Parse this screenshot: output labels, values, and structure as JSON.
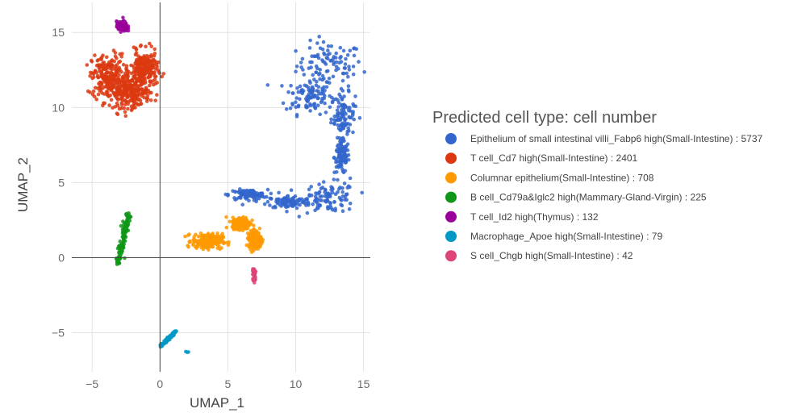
{
  "chart_data": {
    "type": "scatter",
    "title": "",
    "xlabel": "UMAP_1",
    "ylabel": "UMAP_2",
    "xlim": [
      -6.5,
      15.5
    ],
    "ylim": [
      -7.6,
      17.0
    ],
    "xticks": [
      -5,
      0,
      5,
      10,
      15
    ],
    "yticks": [
      -5,
      0,
      5,
      10,
      15
    ],
    "tick_labels_x": [
      "−5",
      "0",
      "5",
      "10",
      "15"
    ],
    "tick_labels_y": [
      "−5",
      "0",
      "5",
      "10",
      "15"
    ],
    "grid": true,
    "legend_placement": "right",
    "legend_title": "Predicted cell type: cell number",
    "series": [
      {
        "name": "Epithelium of small intestinal villi_Fabp6 high(Small-Intestine) : 5737",
        "color": "#3366cc",
        "count": 5737,
        "clusters": [
          {
            "cx": 12.5,
            "cy": 12.8,
            "sx": 2.2,
            "sy": 1.4
          },
          {
            "cx": 11.0,
            "cy": 10.8,
            "sx": 1.6,
            "sy": 1.1
          },
          {
            "cx": 13.5,
            "cy": 9.5,
            "sx": 0.8,
            "sy": 1.3
          },
          {
            "cx": 13.4,
            "cy": 6.7,
            "sx": 0.5,
            "sy": 1.0
          },
          {
            "cx": 12.5,
            "cy": 4.0,
            "sx": 1.8,
            "sy": 0.9
          },
          {
            "cx": 6.5,
            "cy": 4.2,
            "sx": 1.3,
            "sy": 0.3
          },
          {
            "cx": 9.5,
            "cy": 3.7,
            "sx": 1.5,
            "sy": 0.4
          }
        ]
      },
      {
        "name": "T cell_Cd7 high(Small-Intestine) : 2401",
        "color": "#dc3912",
        "count": 2401,
        "clusters": [
          {
            "cx": -3.8,
            "cy": 12.0,
            "sx": 1.1,
            "sy": 1.4
          },
          {
            "cx": -2.2,
            "cy": 11.0,
            "sx": 1.3,
            "sy": 0.9
          },
          {
            "cx": -1.2,
            "cy": 12.5,
            "sx": 0.9,
            "sy": 1.1
          }
        ]
      },
      {
        "name": "Columnar epithelium(Small-Intestine) : 708",
        "color": "#ff9900",
        "count": 708,
        "clusters": [
          {
            "cx": 3.5,
            "cy": 1.1,
            "sx": 1.0,
            "sy": 0.45
          },
          {
            "cx": 6.0,
            "cy": 2.3,
            "sx": 0.6,
            "sy": 0.35
          },
          {
            "cx": 7.0,
            "cy": 1.2,
            "sx": 0.4,
            "sy": 0.5
          }
        ]
      },
      {
        "name": "B cell_Cd79a&Iglc2 high(Mammary-Gland-Virgin) : 225",
        "color": "#109618",
        "count": 225,
        "line": {
          "x1": -3.1,
          "y1": -0.3,
          "x2": -2.3,
          "y2": 2.9,
          "spread": 0.12
        }
      },
      {
        "name": "T cell_Id2 high(Thymus) : 132",
        "color": "#990099",
        "count": 132,
        "clusters": [
          {
            "cx": -2.8,
            "cy": 15.4,
            "sx": 0.35,
            "sy": 0.3
          }
        ]
      },
      {
        "name": "Macrophage_Apoe high(Small-Intestine) : 79",
        "color": "#0099c6",
        "count": 79,
        "line": {
          "x1": 0.0,
          "y1": -5.9,
          "x2": 1.2,
          "y2": -4.9,
          "spread": 0.06
        },
        "extra": [
          [
            1.9,
            -6.25
          ],
          [
            2.0,
            -6.3
          ],
          [
            2.1,
            -6.28
          ]
        ]
      },
      {
        "name": "S cell_Chgb high(Small-Intestine) : 42",
        "color": "#dd4477",
        "count": 42,
        "line": {
          "x1": 6.9,
          "y1": -0.7,
          "x2": 7.0,
          "y2": -1.6,
          "spread": 0.06
        }
      }
    ]
  }
}
